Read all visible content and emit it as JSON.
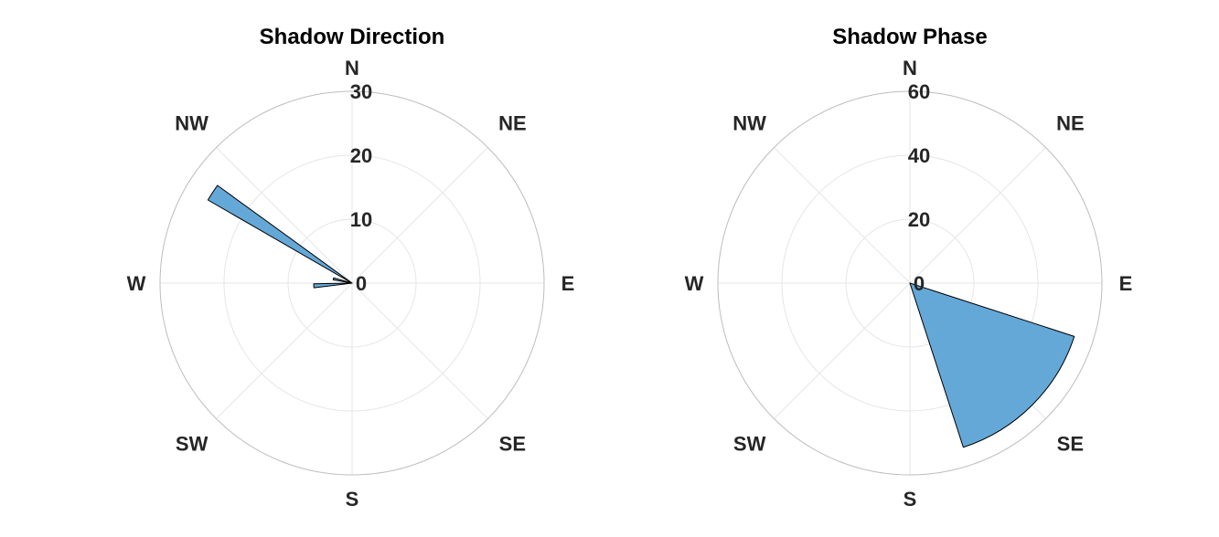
{
  "colors": {
    "bar": "#64a8d8",
    "edge": "#000000"
  },
  "chart_data": [
    {
      "type": "polar-histogram",
      "title": "Shadow Direction",
      "theta_zero_location": "N",
      "theta_direction": "clockwise",
      "direction_labels": [
        "N",
        "NE",
        "E",
        "SE",
        "S",
        "SW",
        "W",
        "NW"
      ],
      "rlim": [
        0,
        30
      ],
      "rticks": [
        0,
        10,
        20,
        30
      ],
      "rtick_labels": [
        "0",
        "10",
        "20",
        "30"
      ],
      "bins": [
        {
          "theta_start_deg": 300,
          "theta_end_deg": 306,
          "value": 26
        },
        {
          "theta_start_deg": 263,
          "theta_end_deg": 269,
          "value": 6
        },
        {
          "theta_start_deg": 280,
          "theta_end_deg": 286,
          "value": 3
        }
      ]
    },
    {
      "type": "polar-histogram",
      "title": "Shadow Phase",
      "theta_zero_location": "N",
      "theta_direction": "clockwise",
      "direction_labels": [
        "N",
        "NE",
        "E",
        "SE",
        "S",
        "SW",
        "W",
        "NW"
      ],
      "rlim": [
        0,
        60
      ],
      "rticks": [
        0,
        20,
        40,
        60
      ],
      "rtick_labels": [
        "0",
        "20",
        "40",
        "60"
      ],
      "bins": [
        {
          "theta_start_deg": 108,
          "theta_end_deg": 162,
          "value": 54
        }
      ]
    }
  ]
}
